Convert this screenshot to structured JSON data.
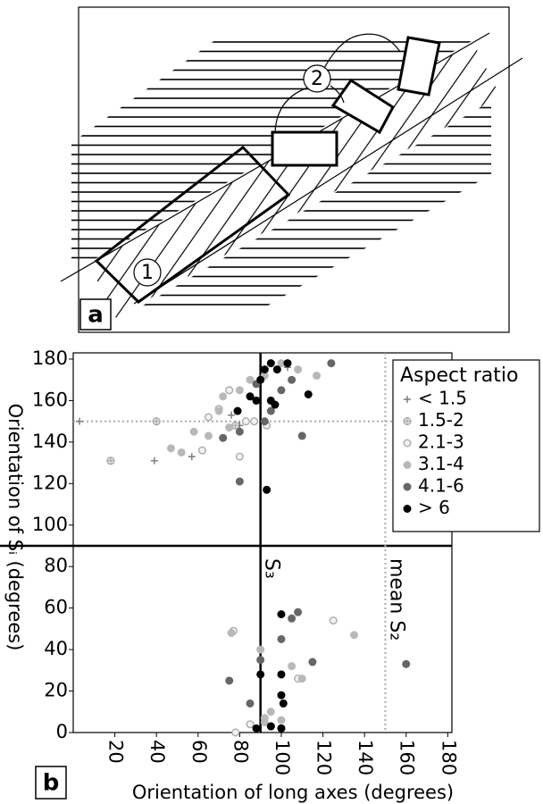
{
  "diagram": {
    "panel_label": "a",
    "labels": [
      "1",
      "2"
    ]
  },
  "chart_data": {
    "type": "scatter",
    "panel_label": "b",
    "x_label": "Orientation of long axes (degrees)",
    "y_label": "Orientation of Sᵢ (degrees)",
    "xlim": [
      0,
      182
    ],
    "ylim": [
      0,
      183
    ],
    "xticks": [
      20,
      40,
      60,
      80,
      100,
      120,
      140,
      160,
      180
    ],
    "yticks": [
      0,
      20,
      40,
      60,
      80,
      100,
      120,
      140,
      160,
      180
    ],
    "reference_lines": [
      {
        "axis": "x",
        "value": 90,
        "style": "solid",
        "label": "S₃"
      },
      {
        "axis": "y",
        "value": 90,
        "style": "solid"
      },
      {
        "axis": "x",
        "value": 150,
        "style": "dotted",
        "label": "mean S₂"
      },
      {
        "axis": "y",
        "value": 150,
        "style": "dotted"
      }
    ],
    "legend_title": "Aspect ratio",
    "legend": "upper right",
    "series": [
      {
        "name": "< 1.5",
        "color": "#777777",
        "marker": "plus",
        "x": [
          3,
          39,
          57,
          76,
          80,
          103
        ],
        "y": [
          150,
          131,
          133,
          153,
          148,
          176
        ]
      },
      {
        "name": "1.5-2",
        "color": "#999999",
        "marker": "circle-plus",
        "x": [
          18,
          40,
          78
        ],
        "y": [
          131,
          150,
          148
        ]
      },
      {
        "name": "2.1-3",
        "color": "#aaaaaa",
        "marker": "open-circle",
        "x": [
          65,
          62,
          70,
          75,
          80,
          83,
          87,
          93,
          77,
          125,
          108,
          78,
          85
        ],
        "y": [
          152,
          136,
          156,
          165,
          133,
          150,
          150,
          148,
          49,
          54,
          26,
          0,
          4
        ]
      },
      {
        "name": "3.1-4",
        "color": "#b8b8b8",
        "marker": "circle",
        "x": [
          47,
          52,
          58,
          65,
          70,
          72,
          75,
          80,
          85,
          88,
          92,
          100,
          108,
          117,
          135,
          92,
          95,
          90,
          105,
          110,
          92,
          100,
          76
        ],
        "y": [
          137,
          135,
          145,
          143,
          155,
          162,
          147,
          165,
          170,
          160,
          172,
          178,
          175,
          172,
          47,
          7,
          10,
          40,
          32,
          26,
          5,
          6,
          48
        ]
      },
      {
        "name": "4.1-6",
        "color": "#666666",
        "marker": "circle",
        "x": [
          72,
          80,
          88,
          92,
          95,
          100,
          105,
          110,
          124,
          80,
          75,
          90,
          100,
          105,
          108,
          115,
          160,
          95,
          85,
          100
        ],
        "y": [
          142,
          145,
          168,
          150,
          155,
          165,
          170,
          143,
          178,
          121,
          25,
          35,
          45,
          55,
          58,
          34,
          33,
          3,
          14,
          2
        ]
      },
      {
        "name": "> 6",
        "color": "#000000",
        "marker": "circle",
        "x": [
          79,
          85,
          88,
          90,
          92,
          95,
          98,
          103,
          113,
          95,
          97,
          93,
          100,
          100,
          100,
          101,
          90,
          88,
          100,
          95
        ],
        "y": [
          155,
          162,
          160,
          170,
          175,
          178,
          175,
          178,
          163,
          160,
          158,
          117,
          57,
          28,
          18,
          14,
          28,
          2,
          2,
          3
        ]
      }
    ]
  }
}
